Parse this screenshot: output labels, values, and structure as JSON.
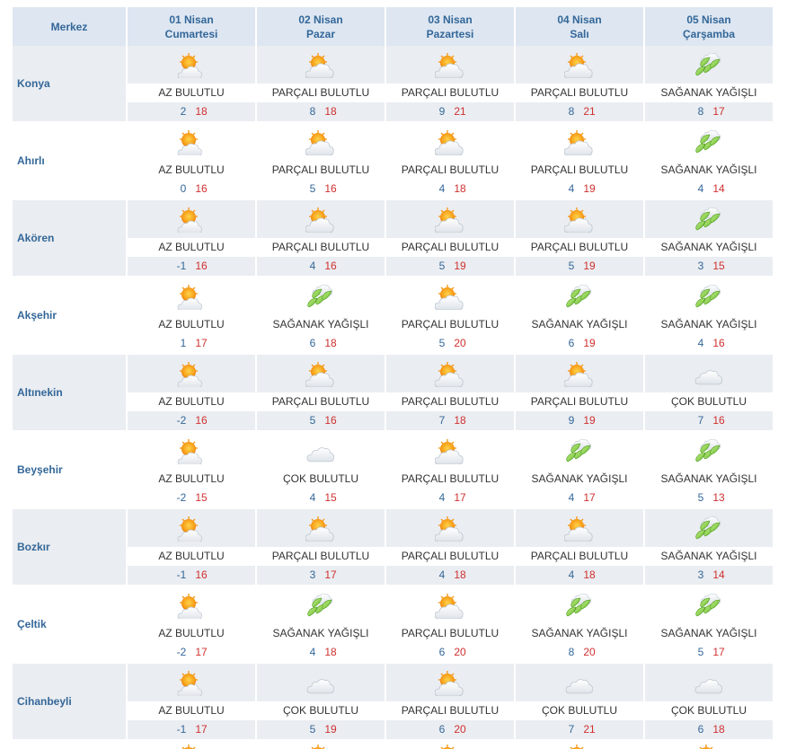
{
  "header": {
    "merkez": "Merkez",
    "days": [
      {
        "date": "01 Nisan",
        "weekday": "Cumartesi"
      },
      {
        "date": "02 Nisan",
        "weekday": "Pazar"
      },
      {
        "date": "03 Nisan",
        "weekday": "Pazartesi"
      },
      {
        "date": "04 Nisan",
        "weekday": "Salı"
      },
      {
        "date": "05 Nisan",
        "weekday": "Çarşamba"
      }
    ]
  },
  "icons": {
    "AZ BULUTLU": "sun-cloud-icon",
    "PARÇALI BULUTLU": "partly-cloudy-icon",
    "SAĞANAK YAĞIŞLI": "rain-shower-icon",
    "ÇOK BULUTLU": "cloudy-icon"
  },
  "colors": {
    "header_bg": "#dde6f1",
    "accent_text": "#336799",
    "alt_row_bg": "#eaedf1",
    "low_temp": "#336799",
    "high_temp": "#d03030"
  },
  "rows": [
    {
      "city": "Konya",
      "days": [
        {
          "cond": "AZ BULUTLU",
          "lo": "2",
          "hi": "18"
        },
        {
          "cond": "PARÇALI BULUTLU",
          "lo": "8",
          "hi": "18"
        },
        {
          "cond": "PARÇALI BULUTLU",
          "lo": "9",
          "hi": "21"
        },
        {
          "cond": "PARÇALI BULUTLU",
          "lo": "8",
          "hi": "21"
        },
        {
          "cond": "SAĞANAK YAĞIŞLI",
          "lo": "8",
          "hi": "17"
        }
      ]
    },
    {
      "city": "Ahırlı",
      "days": [
        {
          "cond": "AZ BULUTLU",
          "lo": "0",
          "hi": "16"
        },
        {
          "cond": "PARÇALI BULUTLU",
          "lo": "5",
          "hi": "16"
        },
        {
          "cond": "PARÇALI BULUTLU",
          "lo": "4",
          "hi": "18"
        },
        {
          "cond": "PARÇALI BULUTLU",
          "lo": "4",
          "hi": "19"
        },
        {
          "cond": "SAĞANAK YAĞIŞLI",
          "lo": "4",
          "hi": "14"
        }
      ]
    },
    {
      "city": "Akören",
      "days": [
        {
          "cond": "AZ BULUTLU",
          "lo": "-1",
          "hi": "16"
        },
        {
          "cond": "PARÇALI BULUTLU",
          "lo": "4",
          "hi": "16"
        },
        {
          "cond": "PARÇALI BULUTLU",
          "lo": "5",
          "hi": "19"
        },
        {
          "cond": "PARÇALI BULUTLU",
          "lo": "5",
          "hi": "19"
        },
        {
          "cond": "SAĞANAK YAĞIŞLI",
          "lo": "3",
          "hi": "15"
        }
      ]
    },
    {
      "city": "Akşehir",
      "days": [
        {
          "cond": "AZ BULUTLU",
          "lo": "1",
          "hi": "17"
        },
        {
          "cond": "SAĞANAK YAĞIŞLI",
          "lo": "6",
          "hi": "18"
        },
        {
          "cond": "PARÇALI BULUTLU",
          "lo": "5",
          "hi": "20"
        },
        {
          "cond": "SAĞANAK YAĞIŞLI",
          "lo": "6",
          "hi": "19"
        },
        {
          "cond": "SAĞANAK YAĞIŞLI",
          "lo": "4",
          "hi": "16"
        }
      ]
    },
    {
      "city": "Altınekin",
      "days": [
        {
          "cond": "AZ BULUTLU",
          "lo": "-2",
          "hi": "16"
        },
        {
          "cond": "PARÇALI BULUTLU",
          "lo": "5",
          "hi": "16"
        },
        {
          "cond": "PARÇALI BULUTLU",
          "lo": "7",
          "hi": "18"
        },
        {
          "cond": "PARÇALI BULUTLU",
          "lo": "9",
          "hi": "19"
        },
        {
          "cond": "ÇOK BULUTLU",
          "lo": "7",
          "hi": "16"
        }
      ]
    },
    {
      "city": "Beyşehir",
      "days": [
        {
          "cond": "AZ BULUTLU",
          "lo": "-2",
          "hi": "15"
        },
        {
          "cond": "ÇOK BULUTLU",
          "lo": "4",
          "hi": "15"
        },
        {
          "cond": "PARÇALI BULUTLU",
          "lo": "4",
          "hi": "17"
        },
        {
          "cond": "SAĞANAK YAĞIŞLI",
          "lo": "4",
          "hi": "17"
        },
        {
          "cond": "SAĞANAK YAĞIŞLI",
          "lo": "5",
          "hi": "13"
        }
      ]
    },
    {
      "city": "Bozkır",
      "days": [
        {
          "cond": "AZ BULUTLU",
          "lo": "-1",
          "hi": "16"
        },
        {
          "cond": "PARÇALI BULUTLU",
          "lo": "3",
          "hi": "17"
        },
        {
          "cond": "PARÇALI BULUTLU",
          "lo": "4",
          "hi": "18"
        },
        {
          "cond": "PARÇALI BULUTLU",
          "lo": "4",
          "hi": "18"
        },
        {
          "cond": "SAĞANAK YAĞIŞLI",
          "lo": "3",
          "hi": "14"
        }
      ]
    },
    {
      "city": "Çeltik",
      "days": [
        {
          "cond": "AZ BULUTLU",
          "lo": "-2",
          "hi": "17"
        },
        {
          "cond": "SAĞANAK YAĞIŞLI",
          "lo": "4",
          "hi": "18"
        },
        {
          "cond": "PARÇALI BULUTLU",
          "lo": "6",
          "hi": "20"
        },
        {
          "cond": "SAĞANAK YAĞIŞLI",
          "lo": "8",
          "hi": "20"
        },
        {
          "cond": "SAĞANAK YAĞIŞLI",
          "lo": "5",
          "hi": "17"
        }
      ]
    },
    {
      "city": "Cihanbeyli",
      "days": [
        {
          "cond": "AZ BULUTLU",
          "lo": "-1",
          "hi": "17"
        },
        {
          "cond": "ÇOK BULUTLU",
          "lo": "5",
          "hi": "19"
        },
        {
          "cond": "PARÇALI BULUTLU",
          "lo": "6",
          "hi": "20"
        },
        {
          "cond": "ÇOK BULUTLU",
          "lo": "7",
          "hi": "21"
        },
        {
          "cond": "ÇOK BULUTLU",
          "lo": "6",
          "hi": "18"
        }
      ]
    }
  ],
  "partial_row_icons": [
    "AZ BULUTLU",
    "PARÇALI BULUTLU",
    "PARÇALI BULUTLU",
    "PARÇALI BULUTLU",
    "PARÇALI BULUTLU"
  ]
}
